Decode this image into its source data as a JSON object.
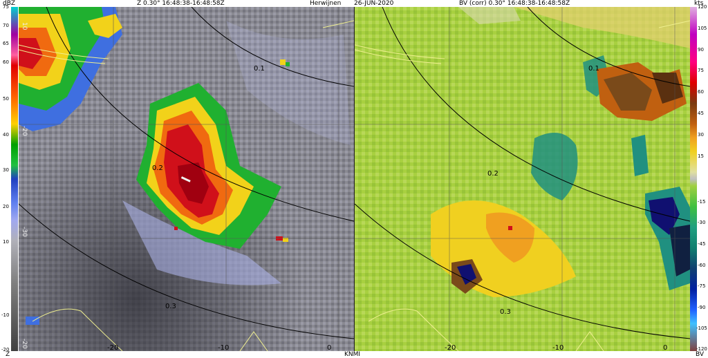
{
  "header": {
    "left_unit": "dBZ",
    "left_title": "Z  0.30°  16:48:38-16:48:58Z",
    "site": "Herwijnen",
    "date": "26-JUN-2020",
    "right_title": "BV (corr)  0.30°  16:48:38-16:48:58Z",
    "right_unit": "kts"
  },
  "footer": {
    "left_label": "Z",
    "center_label": "KNMI",
    "right_label": "BV"
  },
  "reflectivity_scale": {
    "ticks": [
      "75",
      "70",
      "65",
      "60",
      "50",
      "40",
      "30",
      "20",
      "10",
      "-10",
      "-20"
    ]
  },
  "velocity_scale": {
    "ticks": [
      "120",
      "105",
      "90",
      "75",
      "60",
      "45",
      "30",
      "15",
      "-15",
      "-30",
      "-45",
      "-60",
      "-75",
      "-90",
      "-105",
      "-120"
    ]
  },
  "left_panel": {
    "range_labels": [
      "0.1",
      "0.2",
      "0.3"
    ],
    "axis_labels": [
      "-20",
      "-10",
      "0"
    ],
    "vertical_labels": [
      "10",
      "-20",
      "-30",
      "-20"
    ]
  },
  "right_panel": {
    "range_labels": [
      "0.1",
      "0.2",
      "0.3"
    ],
    "axis_labels": [
      "-20",
      "-10",
      "0"
    ]
  },
  "colors": {
    "z_red": "#d0101a",
    "z_orange": "#f06a10",
    "z_yellow": "#f2d21a",
    "z_green": "#20b030",
    "z_blue": "#3f6fe0",
    "z_lightblue": "#b0b8f0",
    "v_green": "#9acd32",
    "v_yellow": "#f0d020",
    "v_orange": "#f0a020",
    "v_brown": "#7a4a1a",
    "v_teal": "#209080",
    "v_navy": "#101070"
  }
}
